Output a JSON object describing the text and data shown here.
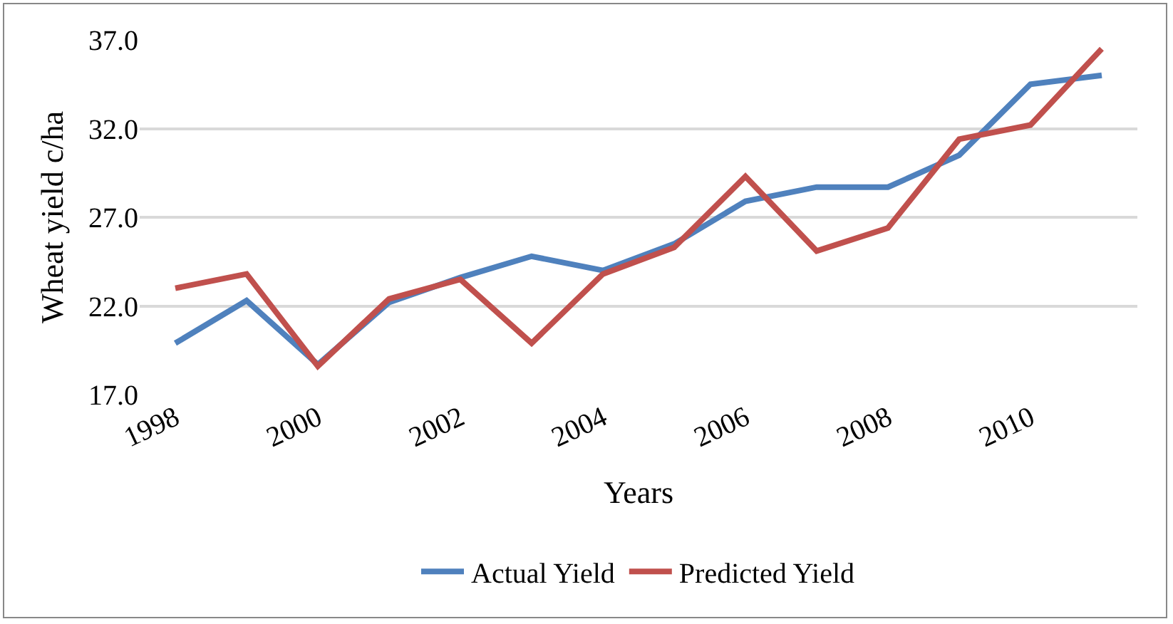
{
  "chart_data": {
    "type": "line",
    "xlabel": "Years",
    "ylabel": "Wheat yield c/ha",
    "x": [
      1998,
      1999,
      2000,
      2001,
      2002,
      2003,
      2004,
      2005,
      2006,
      2007,
      2008,
      2009,
      2010,
      2011
    ],
    "series": [
      {
        "name": "Actual Yield",
        "color": "#4f81bd",
        "values": [
          19.9,
          22.3,
          18.7,
          22.2,
          23.6,
          24.8,
          24.0,
          25.5,
          27.9,
          28.7,
          28.7,
          30.5,
          34.5,
          35.0
        ]
      },
      {
        "name": "Predicted Yield",
        "color": "#c0504d",
        "values": [
          23.0,
          23.8,
          18.6,
          22.4,
          23.5,
          19.9,
          23.8,
          25.3,
          29.3,
          25.1,
          26.4,
          31.4,
          32.2,
          36.5
        ]
      }
    ],
    "xlim": [
      1997.5,
      2011.5
    ],
    "xticks": [
      1998,
      2000,
      2002,
      2004,
      2006,
      2008,
      2010
    ],
    "ylim": [
      17,
      37
    ],
    "yticks": [
      {
        "value": 17,
        "label": "17.0"
      },
      {
        "value": 22,
        "label": "22.0"
      },
      {
        "value": 27,
        "label": "27.0"
      },
      {
        "value": 32,
        "label": "32.0"
      },
      {
        "value": 37,
        "label": "37.0"
      }
    ],
    "grid": "y",
    "legend": "bottom",
    "marker": "none",
    "line_style": "solid"
  }
}
